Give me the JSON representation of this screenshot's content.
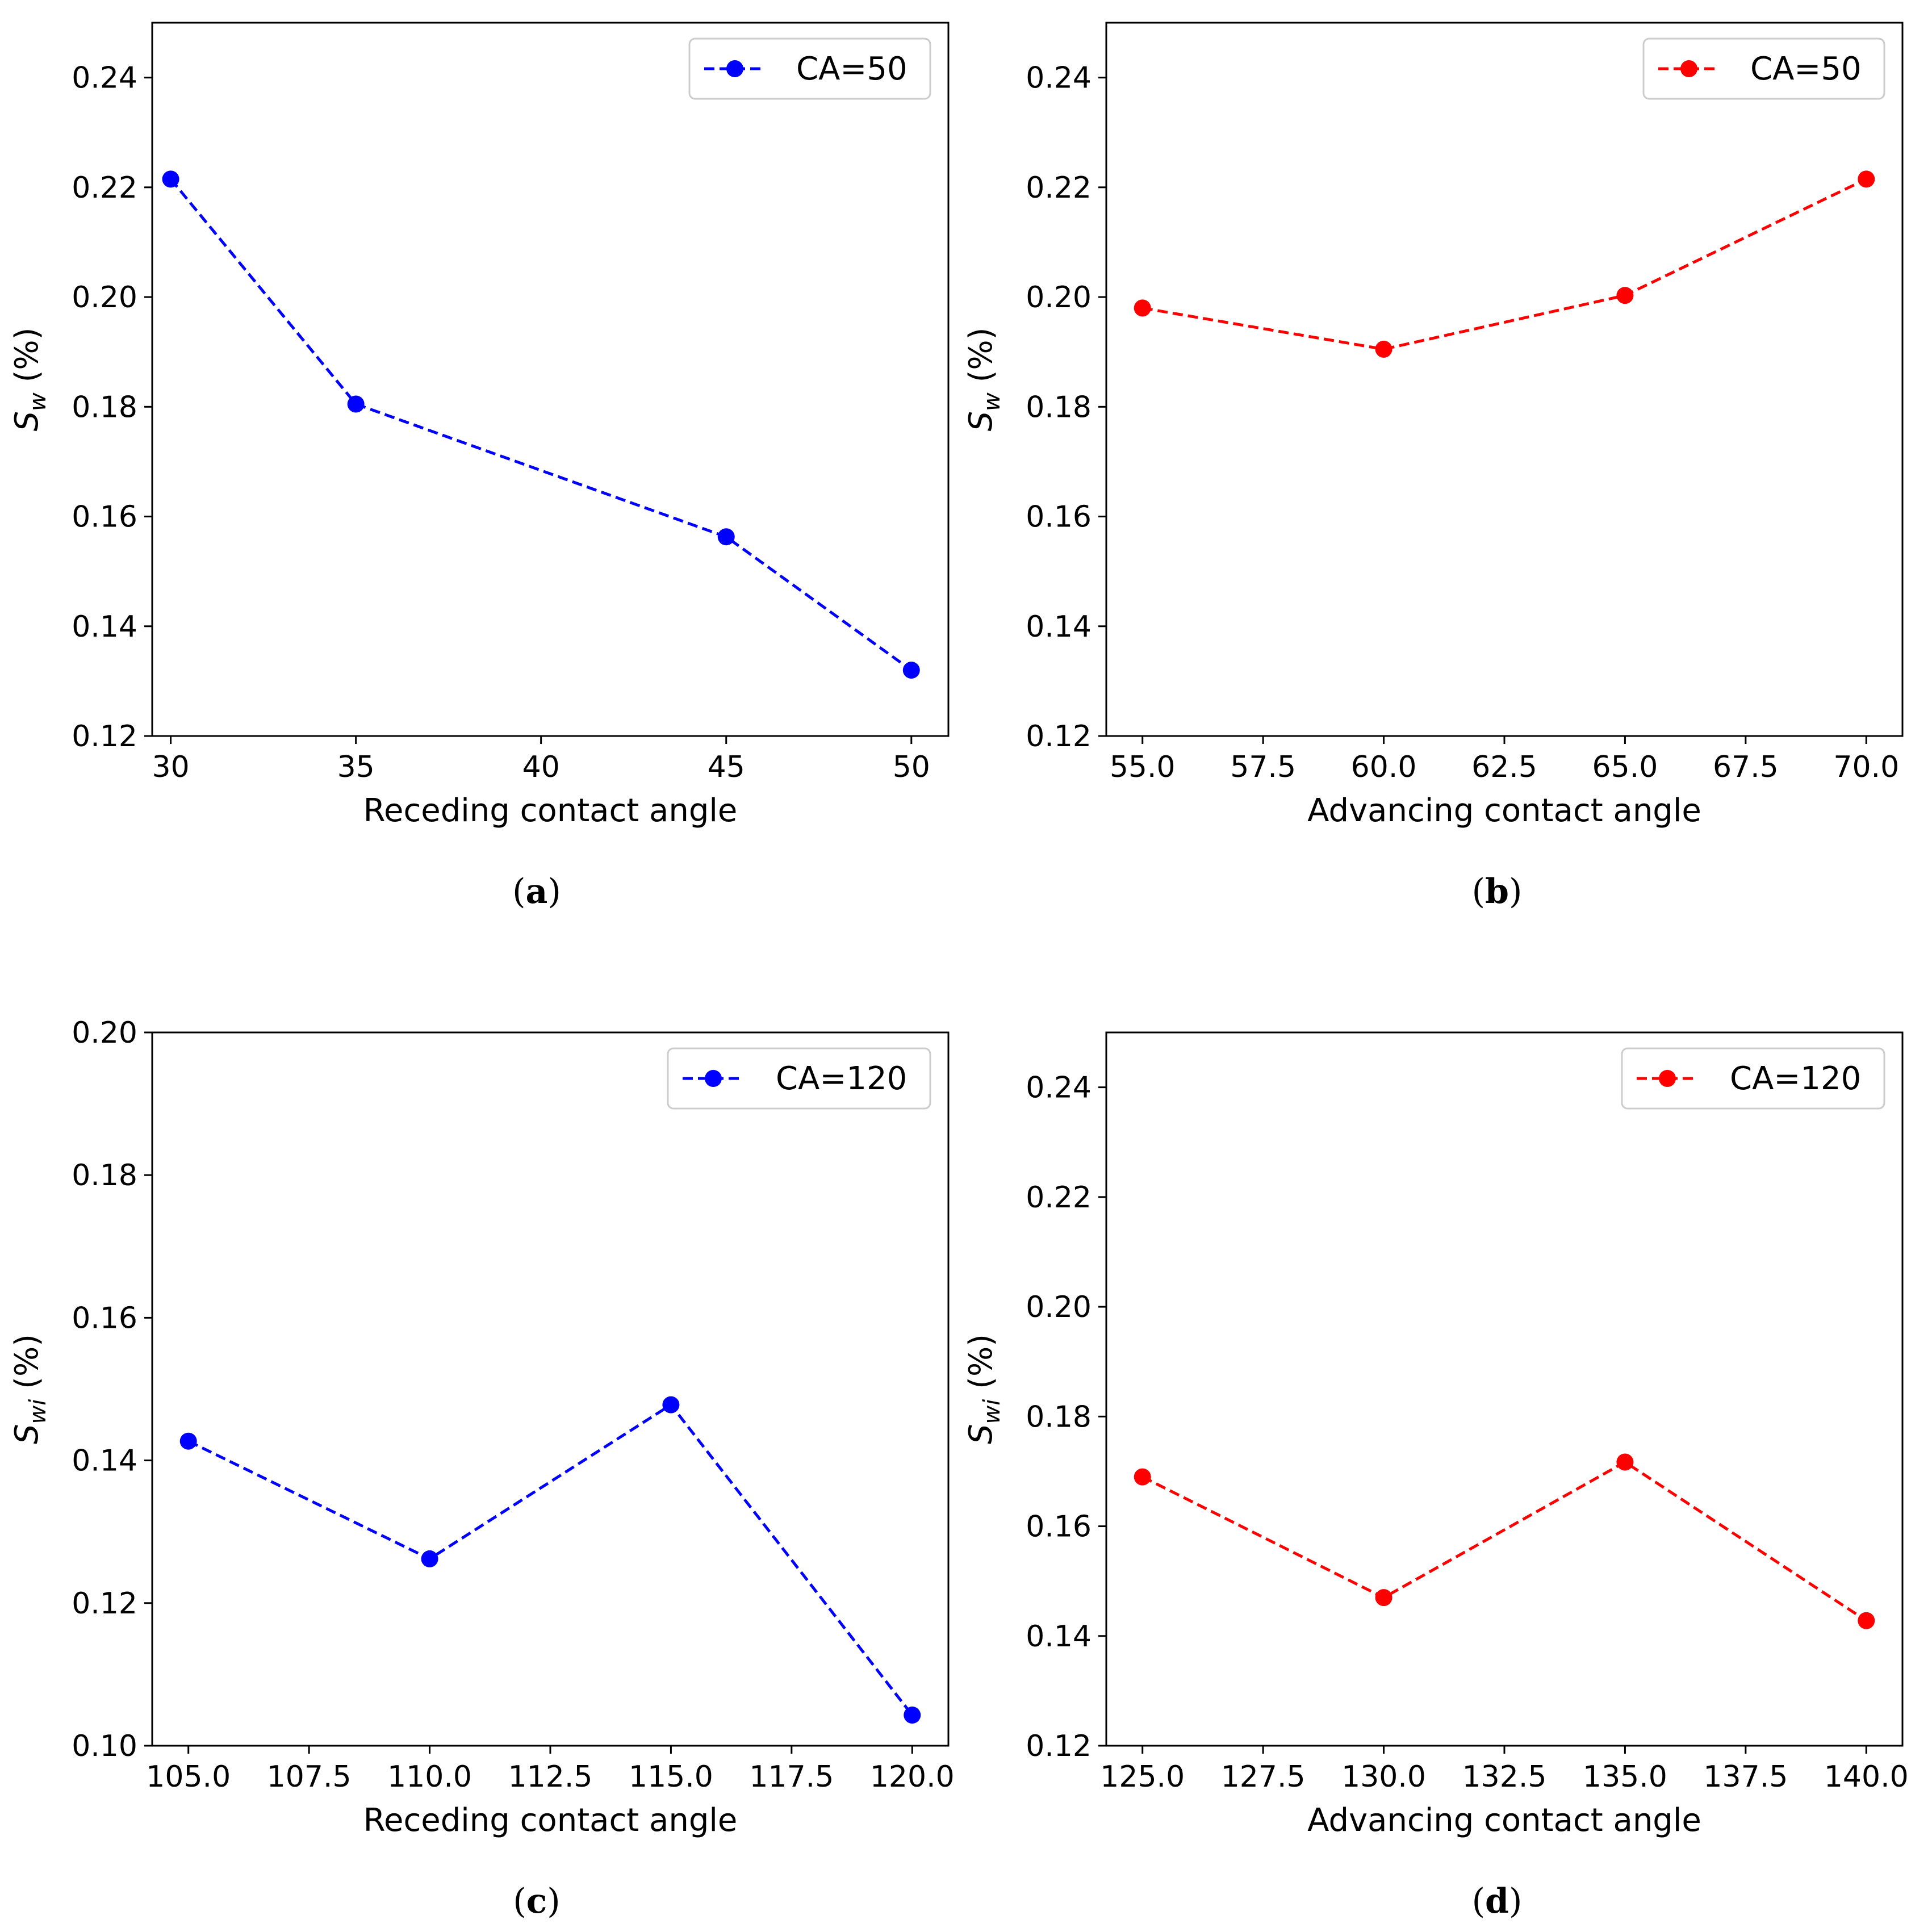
{
  "figure": {
    "panels": [
      {
        "caption": "(a)",
        "caption_letter": "a"
      },
      {
        "caption": "(b)",
        "caption_letter": "b"
      },
      {
        "caption": "(c)",
        "caption_letter": "c"
      },
      {
        "caption": "(d)",
        "caption_letter": "d"
      }
    ]
  },
  "colors": {
    "blue": "#0000ff",
    "red": "#ff0000",
    "axis": "#000000",
    "legend_border": "#cccccc"
  },
  "chart_data": [
    {
      "type": "line",
      "panel": "a",
      "x": [
        30,
        35,
        45,
        50
      ],
      "series": [
        {
          "name": "CA=50",
          "values": [
            0.2215,
            0.1805,
            0.1563,
            0.132
          ],
          "color": "#0000ff",
          "linestyle": "dashed",
          "marker": "circle"
        }
      ],
      "xlabel": "Receding contact angle",
      "ylabel_main": "S",
      "ylabel_sub": "w",
      "ylabel_rest": " (%)",
      "xlim": [
        29.5,
        51
      ],
      "ylim": [
        0.12,
        0.25
      ],
      "xticks": [
        30,
        35,
        40,
        45,
        50
      ],
      "xtick_labels": [
        "30",
        "35",
        "40",
        "45",
        "50"
      ],
      "yticks": [
        0.12,
        0.14,
        0.16,
        0.18,
        0.2,
        0.22,
        0.24
      ],
      "ytick_labels": [
        "0.12",
        "0.14",
        "0.16",
        "0.18",
        "0.20",
        "0.22",
        "0.24"
      ],
      "legend": "upper right",
      "grid": false
    },
    {
      "type": "line",
      "panel": "b",
      "x": [
        55,
        60,
        65,
        70
      ],
      "series": [
        {
          "name": "CA=50",
          "values": [
            0.198,
            0.1905,
            0.2003,
            0.2215
          ],
          "color": "#ff0000",
          "linestyle": "dashed",
          "marker": "circle"
        }
      ],
      "xlabel": "Advancing contact angle",
      "ylabel_main": "S",
      "ylabel_sub": "w",
      "ylabel_rest": " (%)",
      "xlim": [
        54.25,
        70.75
      ],
      "ylim": [
        0.12,
        0.25
      ],
      "xticks": [
        55,
        57.5,
        60,
        62.5,
        65,
        67.5,
        70
      ],
      "xtick_labels": [
        "55.0",
        "57.5",
        "60.0",
        "62.5",
        "65.0",
        "67.5",
        "70.0"
      ],
      "yticks": [
        0.12,
        0.14,
        0.16,
        0.18,
        0.2,
        0.22,
        0.24
      ],
      "ytick_labels": [
        "0.12",
        "0.14",
        "0.16",
        "0.18",
        "0.20",
        "0.22",
        "0.24"
      ],
      "legend": "upper right",
      "grid": false
    },
    {
      "type": "line",
      "panel": "c",
      "x": [
        105,
        110,
        115,
        120
      ],
      "series": [
        {
          "name": "CA=120",
          "values": [
            0.1427,
            0.1262,
            0.1478,
            0.1043
          ],
          "color": "#0000ff",
          "linestyle": "dashed",
          "marker": "circle"
        }
      ],
      "xlabel": "Receding contact angle",
      "ylabel_main": "S",
      "ylabel_sub": "wi",
      "ylabel_rest": " (%)",
      "xlim": [
        104.25,
        120.75
      ],
      "ylim": [
        0.1,
        0.2
      ],
      "xticks": [
        105,
        107.5,
        110,
        112.5,
        115,
        117.5,
        120
      ],
      "xtick_labels": [
        "105.0",
        "107.5",
        "110.0",
        "112.5",
        "115.0",
        "117.5",
        "120.0"
      ],
      "yticks": [
        0.1,
        0.12,
        0.14,
        0.16,
        0.18,
        0.2
      ],
      "ytick_labels": [
        "0.10",
        "0.12",
        "0.14",
        "0.16",
        "0.18",
        "0.20"
      ],
      "legend": "upper right",
      "grid": false
    },
    {
      "type": "line",
      "panel": "d",
      "x": [
        125,
        130,
        135,
        140
      ],
      "series": [
        {
          "name": "CA=120",
          "values": [
            0.169,
            0.147,
            0.1717,
            0.1428
          ],
          "color": "#ff0000",
          "linestyle": "dashed",
          "marker": "circle"
        }
      ],
      "xlabel": "Advancing contact angle",
      "ylabel_main": "S",
      "ylabel_sub": "wi",
      "ylabel_rest": " (%)",
      "xlim": [
        124.25,
        140.75
      ],
      "ylim": [
        0.12,
        0.25
      ],
      "xticks": [
        125,
        127.5,
        130,
        132.5,
        135,
        137.5,
        140
      ],
      "xtick_labels": [
        "125.0",
        "127.5",
        "130.0",
        "132.5",
        "135.0",
        "137.5",
        "140.0"
      ],
      "yticks": [
        0.12,
        0.14,
        0.16,
        0.18,
        0.2,
        0.22,
        0.24
      ],
      "ytick_labels": [
        "0.12",
        "0.14",
        "0.16",
        "0.18",
        "0.20",
        "0.22",
        "0.24"
      ],
      "legend": "upper right",
      "grid": false
    }
  ]
}
